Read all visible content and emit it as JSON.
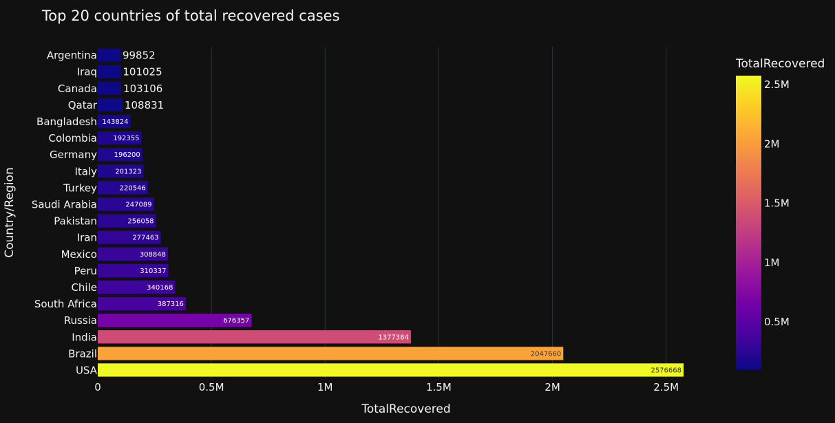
{
  "chart_data": {
    "type": "bar",
    "orientation": "horizontal",
    "title": "Top 20 countries of total recovered cases",
    "xlabel": "TotalRecovered",
    "ylabel": "Country/Region",
    "categories": [
      "Argentina",
      "Iraq",
      "Canada",
      "Qatar",
      "Bangladesh",
      "Colombia",
      "Germany",
      "Italy",
      "Turkey",
      "Saudi Arabia",
      "Pakistan",
      "Iran",
      "Mexico",
      "Peru",
      "Chile",
      "South Africa",
      "Russia",
      "India",
      "Brazil",
      "USA"
    ],
    "values": [
      99852,
      101025,
      103106,
      108831,
      143824,
      192355,
      196200,
      201323,
      220546,
      247089,
      256058,
      277463,
      308848,
      310337,
      340168,
      387316,
      676357,
      1377384,
      2047660,
      2576668
    ],
    "value_labels": [
      "99852",
      "101025",
      "103106",
      "108831",
      "143824",
      "192355",
      "196200",
      "201323",
      "220546",
      "247089",
      "256058",
      "277463",
      "308848",
      "310337",
      "340168",
      "387316",
      "676357",
      "1377384",
      "2047660",
      "2576668"
    ],
    "xlim": [
      0,
      2576668
    ],
    "x_ticks": [
      0,
      500000,
      1000000,
      1500000,
      2000000,
      2500000
    ],
    "x_tick_labels": [
      "0",
      "0.5M",
      "1M",
      "1.5M",
      "2M",
      "2.5M"
    ],
    "grid": true,
    "colorbar": {
      "title": "TotalRecovered",
      "range": [
        99852,
        2576668
      ],
      "ticks": [
        500000,
        1000000,
        1500000,
        2000000,
        2500000
      ],
      "tick_labels": [
        "0.5M",
        "1M",
        "1.5M",
        "2M",
        "2.5M"
      ],
      "colorscale": [
        "#0d0887",
        "#46039f",
        "#7201a8",
        "#9c179e",
        "#bd3786",
        "#d8576b",
        "#ed7953",
        "#fb9f3a",
        "#fdca26",
        "#f0f921"
      ]
    },
    "colors": {
      "background": "#111111",
      "grid": "#283442",
      "text": "#f2f2f2"
    }
  }
}
